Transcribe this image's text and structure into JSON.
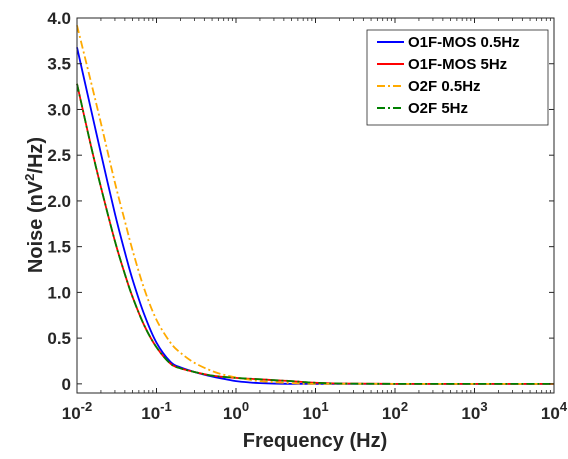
{
  "chart_data": {
    "type": "line",
    "xlabel": "Frequency (Hz)",
    "ylabel_parts": [
      "Noise (nV",
      "2",
      "/Hz)"
    ],
    "x_scale": "log",
    "xlim": [
      0.01,
      10000
    ],
    "ylim": [
      -0.1,
      4.0
    ],
    "x_ticks": [
      {
        "base": "10",
        "exp": "-2"
      },
      {
        "base": "10",
        "exp": "-1"
      },
      {
        "base": "10",
        "exp": "0"
      },
      {
        "base": "10",
        "exp": "1"
      },
      {
        "base": "10",
        "exp": "2"
      },
      {
        "base": "10",
        "exp": "3"
      },
      {
        "base": "10",
        "exp": "4"
      }
    ],
    "x_tick_values": [
      0.01,
      0.1,
      1,
      10,
      100,
      1000,
      10000
    ],
    "y_ticks": [
      "0",
      "0.5",
      "1.0",
      "1.5",
      "2.0",
      "2.5",
      "3.0",
      "3.5",
      "4.0"
    ],
    "y_tick_values": [
      0,
      0.5,
      1.0,
      1.5,
      2.0,
      2.5,
      3.0,
      3.5,
      4.0
    ],
    "grid": false,
    "legend_position": "top-right",
    "series": [
      {
        "name": "O1F-MOS 0.5Hz",
        "color": "#0000ff",
        "dash": "solid",
        "x": [
          0.01,
          0.015,
          0.02,
          0.03,
          0.04,
          0.05,
          0.07,
          0.1,
          0.15,
          0.2,
          0.3,
          0.5,
          0.7,
          1,
          1.5,
          2,
          3,
          5,
          10,
          100,
          1000,
          10000
        ],
        "y": [
          3.68,
          3.0,
          2.52,
          1.86,
          1.44,
          1.14,
          0.76,
          0.45,
          0.24,
          0.18,
          0.13,
          0.08,
          0.055,
          0.03,
          0.015,
          0.008,
          0.003,
          0.0,
          0.0,
          0.0,
          0.0,
          0.0
        ]
      },
      {
        "name": "O1F-MOS 5Hz",
        "color": "#ff0000",
        "dash": "solid",
        "x": [
          0.01,
          0.015,
          0.02,
          0.03,
          0.04,
          0.05,
          0.07,
          0.1,
          0.15,
          0.2,
          0.3,
          0.5,
          1,
          2,
          3,
          5,
          7,
          10,
          20,
          100,
          1000,
          10000
        ],
        "y": [
          3.28,
          2.6,
          2.15,
          1.56,
          1.2,
          0.95,
          0.64,
          0.4,
          0.22,
          0.17,
          0.13,
          0.09,
          0.065,
          0.05,
          0.04,
          0.03,
          0.02,
          0.012,
          0.004,
          0.0,
          0.0,
          0.0
        ]
      },
      {
        "name": "O2F 0.5Hz",
        "color": "#ffaa00",
        "dash": "dashdot",
        "x": [
          0.01,
          0.015,
          0.02,
          0.03,
          0.04,
          0.05,
          0.07,
          0.1,
          0.15,
          0.2,
          0.3,
          0.5,
          0.7,
          1,
          1.5,
          2,
          3,
          5,
          10,
          100,
          1000,
          10000
        ],
        "y": [
          3.92,
          3.3,
          2.85,
          2.2,
          1.78,
          1.46,
          1.04,
          0.7,
          0.45,
          0.34,
          0.23,
          0.14,
          0.1,
          0.07,
          0.045,
          0.03,
          0.018,
          0.008,
          0.0,
          0.0,
          0.0,
          0.0
        ]
      },
      {
        "name": "O2F 5Hz",
        "color": "#008000",
        "dash": "dashdot",
        "x": [
          0.01,
          0.015,
          0.02,
          0.03,
          0.04,
          0.05,
          0.07,
          0.1,
          0.15,
          0.2,
          0.3,
          0.5,
          1,
          2,
          3,
          5,
          7,
          10,
          20,
          100,
          1000,
          10000
        ],
        "y": [
          3.28,
          2.6,
          2.15,
          1.56,
          1.2,
          0.95,
          0.64,
          0.4,
          0.22,
          0.17,
          0.13,
          0.09,
          0.065,
          0.05,
          0.04,
          0.03,
          0.02,
          0.012,
          0.004,
          0.0,
          0.0,
          0.0
        ]
      }
    ]
  }
}
